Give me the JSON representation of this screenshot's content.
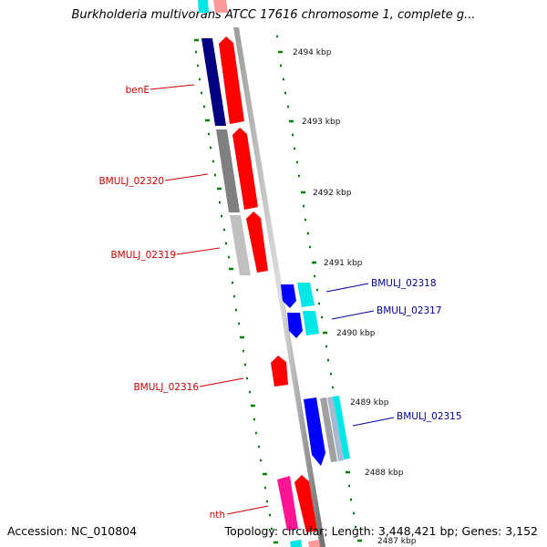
{
  "title": "Burkholderia multivorans ATCC 17616 chromosome 1, complete g...",
  "accession_label": "Accession: NC_010804",
  "info_label": "Topology: circular; Length: 3,448,421 bp; Genes: 3,152",
  "kbp_labels": [
    "2494 kbp",
    "2493 kbp",
    "2492 kbp",
    "2491 kbp",
    "2490 kbp",
    "2489 kbp",
    "2488 kbp",
    "2487 kbp"
  ],
  "genes_left": [
    "benE",
    "BMULJ_02320",
    "BMULJ_02319",
    "BMULJ_02316",
    "nth"
  ],
  "genes_right": [
    "BMULJ_02318",
    "BMULJ_02317",
    "BMULJ_02315"
  ],
  "colors": {
    "gene_red": "#ff0000",
    "gene_navy": "#000080",
    "gene_blue": "#0000ff",
    "gene_cyan": "#00e5e5",
    "gene_magenta": "#ff1493",
    "gene_gray": "#808080",
    "gene_lightgray": "#c0c0c0",
    "tick_green": "#008000",
    "label_red": "#cc0000",
    "label_blue": "#00009a"
  }
}
